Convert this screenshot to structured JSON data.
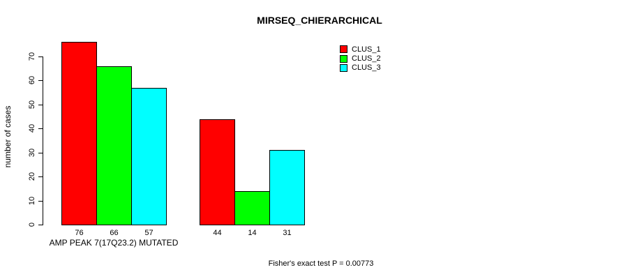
{
  "chart_data": {
    "type": "bar",
    "title": "MIRSEQ_CHIERARCHICAL",
    "ylabel": "number of cases",
    "footer": "Fisher's exact test P = 0.00773",
    "ylim": [
      0,
      70
    ],
    "yticks": [
      0,
      10,
      20,
      30,
      40,
      50,
      60,
      70
    ],
    "grid": false,
    "categories": [
      "AMP PEAK 7(17Q23.2) MUTATED",
      ""
    ],
    "series": [
      {
        "name": "CLUS_1",
        "color": "#ff0000",
        "values": [
          76,
          44
        ]
      },
      {
        "name": "CLUS_2",
        "color": "#00ff00",
        "values": [
          66,
          14
        ]
      },
      {
        "name": "CLUS_3",
        "color": "#00ffff",
        "values": [
          57,
          31
        ]
      }
    ],
    "bar_value_labels": [
      [
        76,
        66,
        57
      ],
      [
        44,
        14,
        31
      ]
    ],
    "legend": {
      "position": "top-right",
      "entries": [
        {
          "label": "CLUS_1",
          "color": "#ff0000"
        },
        {
          "label": "CLUS_2",
          "color": "#00ff00"
        },
        {
          "label": "CLUS_3",
          "color": "#00ffff"
        }
      ]
    },
    "colors": {
      "axis": "#000000",
      "text": "#000000",
      "background": "#ffffff"
    }
  }
}
